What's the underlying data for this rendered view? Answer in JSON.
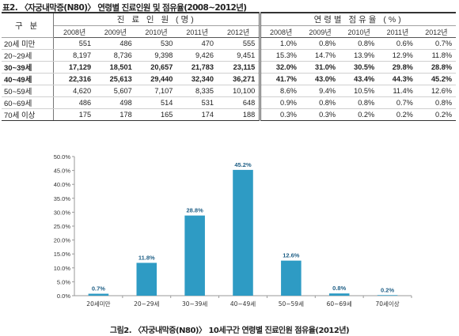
{
  "table_title": "표2. 〈자궁내막증(N80)〉 연령별 진료인원 및 점유율(2008~2012년)",
  "table": {
    "category_header": "구 분",
    "group1_header": "진 료 인 원  (명)",
    "group2_header": "연령별 점유율 (%)",
    "years": [
      "2008년",
      "2009년",
      "2010년",
      "2011년",
      "2012년"
    ],
    "rows": [
      {
        "label": "20세 미만",
        "counts": [
          "551",
          "486",
          "530",
          "470",
          "555"
        ],
        "shares": [
          "1.0%",
          "0.8%",
          "0.8%",
          "0.6%",
          "0.7%"
        ],
        "bold": false
      },
      {
        "label": "20~29세",
        "counts": [
          "8,197",
          "8,736",
          "9,398",
          "9,426",
          "9,451"
        ],
        "shares": [
          "15.3%",
          "14.7%",
          "13.9%",
          "12.9%",
          "11.8%"
        ],
        "bold": false
      },
      {
        "label": "30~39세",
        "counts": [
          "17,129",
          "18,501",
          "20,657",
          "21,783",
          "23,115"
        ],
        "shares": [
          "32.0%",
          "31.0%",
          "30.5%",
          "29.8%",
          "28.8%"
        ],
        "bold": true
      },
      {
        "label": "40~49세",
        "counts": [
          "22,316",
          "25,613",
          "29,440",
          "32,340",
          "36,271"
        ],
        "shares": [
          "41.7%",
          "43.0%",
          "43.4%",
          "44.3%",
          "45.2%"
        ],
        "bold": true
      },
      {
        "label": "50~59세",
        "counts": [
          "4,620",
          "5,607",
          "7,107",
          "8,335",
          "10,100"
        ],
        "shares": [
          "8.6%",
          "9.4%",
          "10.5%",
          "11.4%",
          "12.6%"
        ],
        "bold": false
      },
      {
        "label": "60~69세",
        "counts": [
          "486",
          "498",
          "514",
          "531",
          "648"
        ],
        "shares": [
          "0.9%",
          "0.8%",
          "0.8%",
          "0.7%",
          "0.8%"
        ],
        "bold": false
      },
      {
        "label": "70세 이상",
        "counts": [
          "175",
          "178",
          "165",
          "174",
          "188"
        ],
        "shares": [
          "0.3%",
          "0.3%",
          "0.2%",
          "0.2%",
          "0.2%"
        ],
        "bold": false
      }
    ]
  },
  "chart_data": {
    "type": "bar",
    "categories": [
      "20세미만",
      "20~29세",
      "30~39세",
      "40~49세",
      "50~59세",
      "60~69세",
      "70세이상"
    ],
    "values": [
      0.7,
      11.8,
      28.8,
      45.2,
      12.6,
      0.8,
      0.2
    ],
    "data_labels": [
      "0.7%",
      "11.8%",
      "28.8%",
      "45.2%",
      "12.6%",
      "0.8%",
      "0.2%"
    ],
    "ylim": [
      0,
      50
    ],
    "yticks": [
      "0.0%",
      "5.0%",
      "10.0%",
      "15.0%",
      "20.0%",
      "25.0%",
      "30.0%",
      "35.0%",
      "40.0%",
      "45.0%",
      "50.0%"
    ],
    "grid": false,
    "bar_color": "#2e9bc4",
    "label_color": "#1f5f86"
  },
  "caption": "그림2. 〈자궁내막증(N80)〉 10세구간 연령별 진료인원 점유율(2012년)"
}
